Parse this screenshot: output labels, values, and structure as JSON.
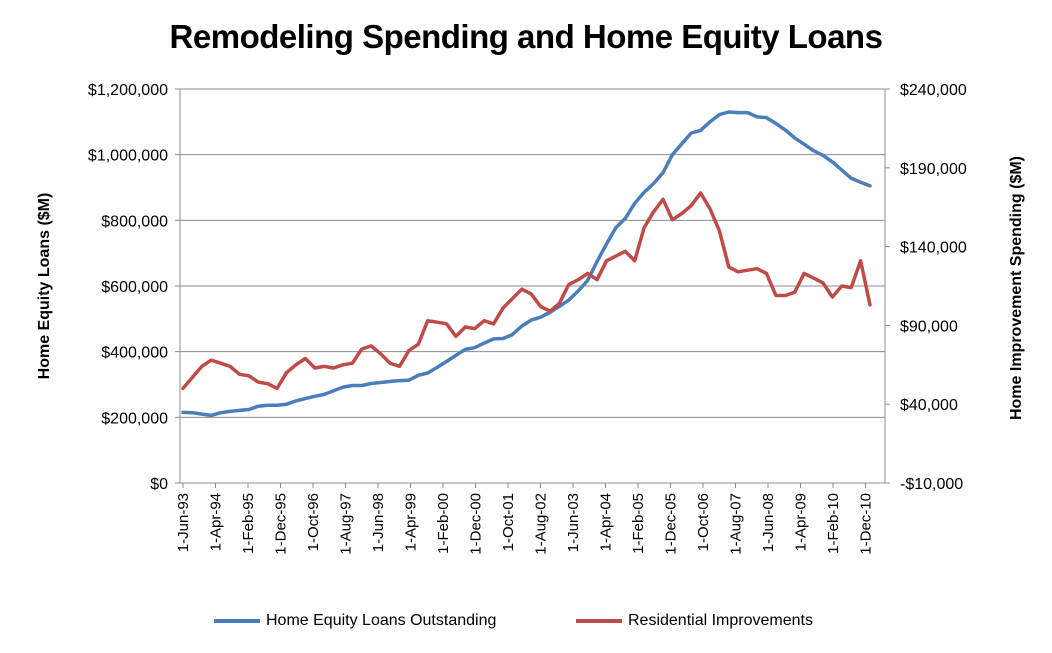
{
  "title": "Remodeling Spending and Home Equity Loans",
  "chart_data": {
    "type": "line",
    "title": "Remodeling Spending and Home Equity Loans",
    "xlabel": "",
    "ylabel": "Home Equity Loans ($M)",
    "y2label": "Home Improvement Spending ($M)",
    "ylim": [
      0,
      1200000
    ],
    "y2lim": [
      -10000,
      240000
    ],
    "y_ticks": [
      "$0",
      "$200,000",
      "$400,000",
      "$600,000",
      "$800,000",
      "$1,000,000",
      "$1,200,000"
    ],
    "y2_ticks": [
      "-$10,000",
      "$40,000",
      "$90,000",
      "$140,000",
      "$190,000",
      "$240,000"
    ],
    "x_tick_labels": [
      "1-Jun-93",
      "1-Apr-94",
      "1-Feb-95",
      "1-Dec-95",
      "1-Oct-96",
      "1-Aug-97",
      "1-Jun-98",
      "1-Apr-99",
      "1-Feb-00",
      "1-Dec-00",
      "1-Oct-01",
      "1-Aug-02",
      "1-Jun-03",
      "1-Apr-04",
      "1-Feb-05",
      "1-Dec-05",
      "1-Oct-06",
      "1-Aug-07",
      "1-Jun-08",
      "1-Apr-09",
      "1-Feb-10",
      "1-Dec-10"
    ],
    "x_range": [
      "1-Jun-93",
      "1-Sep-11"
    ],
    "x": [
      "Jun-93",
      "Sep-93",
      "Dec-93",
      "Mar-94",
      "Jun-94",
      "Sep-94",
      "Dec-94",
      "Mar-95",
      "Jun-95",
      "Sep-95",
      "Dec-95",
      "Mar-96",
      "Jun-96",
      "Sep-96",
      "Dec-96",
      "Mar-97",
      "Jun-97",
      "Sep-97",
      "Dec-97",
      "Mar-98",
      "Jun-98",
      "Sep-98",
      "Dec-98",
      "Mar-99",
      "Jun-99",
      "Sep-99",
      "Dec-99",
      "Mar-00",
      "Jun-00",
      "Sep-00",
      "Dec-00",
      "Mar-01",
      "Jun-01",
      "Sep-01",
      "Dec-01",
      "Mar-02",
      "Jun-02",
      "Sep-02",
      "Dec-02",
      "Mar-03",
      "Jun-03",
      "Sep-03",
      "Dec-03",
      "Mar-04",
      "Jun-04",
      "Sep-04",
      "Dec-04",
      "Mar-05",
      "Jun-05",
      "Sep-05",
      "Dec-05",
      "Mar-06",
      "Jun-06",
      "Sep-06",
      "Dec-06",
      "Mar-07",
      "Jun-07",
      "Sep-07",
      "Dec-07",
      "Mar-08",
      "Jun-08",
      "Sep-08",
      "Dec-08",
      "Mar-09",
      "Jun-09",
      "Sep-09",
      "Dec-09",
      "Mar-10",
      "Jun-10",
      "Sep-10",
      "Dec-10",
      "Mar-11",
      "Jun-11",
      "Sep-11"
    ],
    "series": [
      {
        "name": "Home Equity Loans Outstanding",
        "axis": "left",
        "color": "#4a7ebb",
        "values": [
          215000,
          214000,
          210000,
          206000,
          214000,
          218000,
          221000,
          224000,
          234000,
          237000,
          237000,
          240000,
          250000,
          257000,
          264000,
          270000,
          281000,
          292000,
          297000,
          297000,
          303000,
          306000,
          309000,
          312000,
          313000,
          328000,
          335000,
          352000,
          370000,
          389000,
          407000,
          412000,
          426000,
          439000,
          440000,
          452000,
          478000,
          496000,
          505000,
          520000,
          538000,
          557000,
          585000,
          617000,
          675000,
          728000,
          778000,
          806000,
          852000,
          885000,
          912000,
          945000,
          1000000,
          1033000,
          1066000,
          1074000,
          1100000,
          1122000,
          1130000,
          1128000,
          1128000,
          1115000,
          1113000,
          1095000,
          1075000,
          1051000,
          1032000,
          1012000,
          998000,
          978000,
          953000,
          928000,
          916000,
          905000
        ]
      },
      {
        "name": "Residential Improvements",
        "axis": "right",
        "color": "#be4b48",
        "values": [
          50000,
          57000,
          64000,
          68000,
          66000,
          64000,
          59000,
          58000,
          54000,
          53000,
          50000,
          60000,
          65000,
          69000,
          63000,
          64000,
          63000,
          65000,
          66000,
          75000,
          77000,
          72000,
          66000,
          64000,
          74000,
          78000,
          93000,
          92000,
          91000,
          83000,
          89000,
          88000,
          93000,
          91000,
          101000,
          107000,
          113000,
          110000,
          102000,
          99000,
          104000,
          116000,
          119000,
          123000,
          119000,
          131000,
          134000,
          137000,
          131000,
          152000,
          162000,
          170000,
          157000,
          161000,
          166000,
          174000,
          164000,
          150000,
          127000,
          124000,
          125000,
          126000,
          123000,
          109000,
          109000,
          111000,
          123000,
          120000,
          117000,
          108000,
          115000,
          114000,
          131000,
          103000
        ]
      }
    ],
    "legend": "bottom",
    "grid": "horizontal"
  }
}
